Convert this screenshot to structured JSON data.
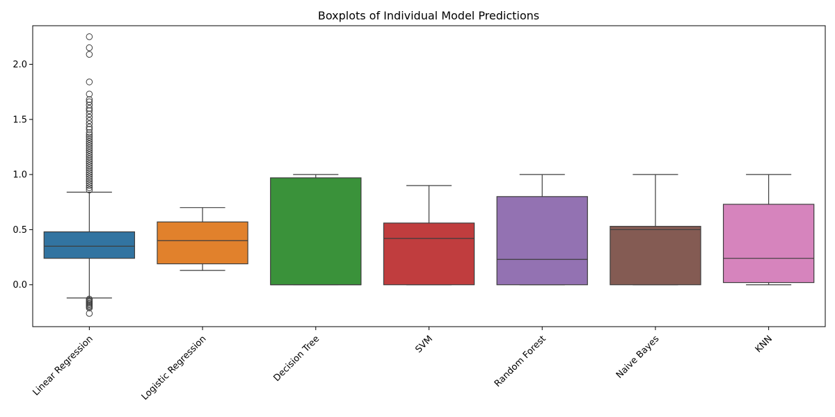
{
  "chart_data": {
    "type": "box",
    "title": "Boxplots of Individual Model Predictions",
    "xlabel": "",
    "ylabel": "",
    "ylim": [
      -0.38,
      2.35
    ],
    "yticks": [
      0.0,
      0.5,
      1.0,
      1.5,
      2.0
    ],
    "ytick_labels": [
      "0.0",
      "0.5",
      "1.0",
      "1.5",
      "2.0"
    ],
    "grid": false,
    "x_label_rotation_deg": 45,
    "categories": [
      "Linear Regression",
      "Logistic Regression",
      "Decision Tree",
      "SVM",
      "Random Forest",
      "Naive Bayes",
      "KNN"
    ],
    "boxes": [
      {
        "name": "Linear Regression",
        "color": "#3274a1",
        "whisker_low": -0.12,
        "q1": 0.24,
        "median": 0.35,
        "q3": 0.48,
        "whisker_high": 0.84,
        "outliers": [
          2.25,
          2.15,
          2.09,
          1.84,
          1.73,
          1.68,
          1.66,
          1.63,
          1.6,
          1.58,
          1.55,
          1.52,
          1.49,
          1.46,
          1.43,
          1.41,
          1.38,
          1.36,
          1.34,
          1.32,
          1.3,
          1.28,
          1.26,
          1.24,
          1.22,
          1.2,
          1.18,
          1.16,
          1.14,
          1.12,
          1.1,
          1.08,
          1.06,
          1.04,
          1.02,
          1.0,
          0.98,
          0.96,
          0.94,
          0.92,
          0.9,
          0.88,
          0.86,
          -0.13,
          -0.14,
          -0.15,
          -0.16,
          -0.17,
          -0.18,
          -0.19,
          -0.2,
          -0.21,
          -0.26
        ]
      },
      {
        "name": "Logistic Regression",
        "color": "#e1812c",
        "whisker_low": 0.13,
        "q1": 0.19,
        "median": 0.4,
        "q3": 0.57,
        "whisker_high": 0.7,
        "outliers": []
      },
      {
        "name": "Decision Tree",
        "color": "#3a923a",
        "whisker_low": 0.0,
        "q1": 0.0,
        "median": 0.0,
        "q3": 0.97,
        "whisker_high": 1.0,
        "outliers": []
      },
      {
        "name": "SVM",
        "color": "#c03d3e",
        "whisker_low": 0.0,
        "q1": 0.0,
        "median": 0.42,
        "q3": 0.56,
        "whisker_high": 0.9,
        "outliers": []
      },
      {
        "name": "Random Forest",
        "color": "#9372b2",
        "whisker_low": 0.0,
        "q1": 0.0,
        "median": 0.23,
        "q3": 0.8,
        "whisker_high": 1.0,
        "outliers": []
      },
      {
        "name": "Naive Bayes",
        "color": "#845b53",
        "whisker_low": 0.0,
        "q1": 0.0,
        "median": 0.5,
        "q3": 0.53,
        "whisker_high": 1.0,
        "outliers": []
      },
      {
        "name": "KNN",
        "color": "#d684bd",
        "whisker_low": 0.0,
        "q1": 0.02,
        "median": 0.24,
        "q3": 0.73,
        "whisker_high": 1.0,
        "outliers": []
      }
    ]
  }
}
